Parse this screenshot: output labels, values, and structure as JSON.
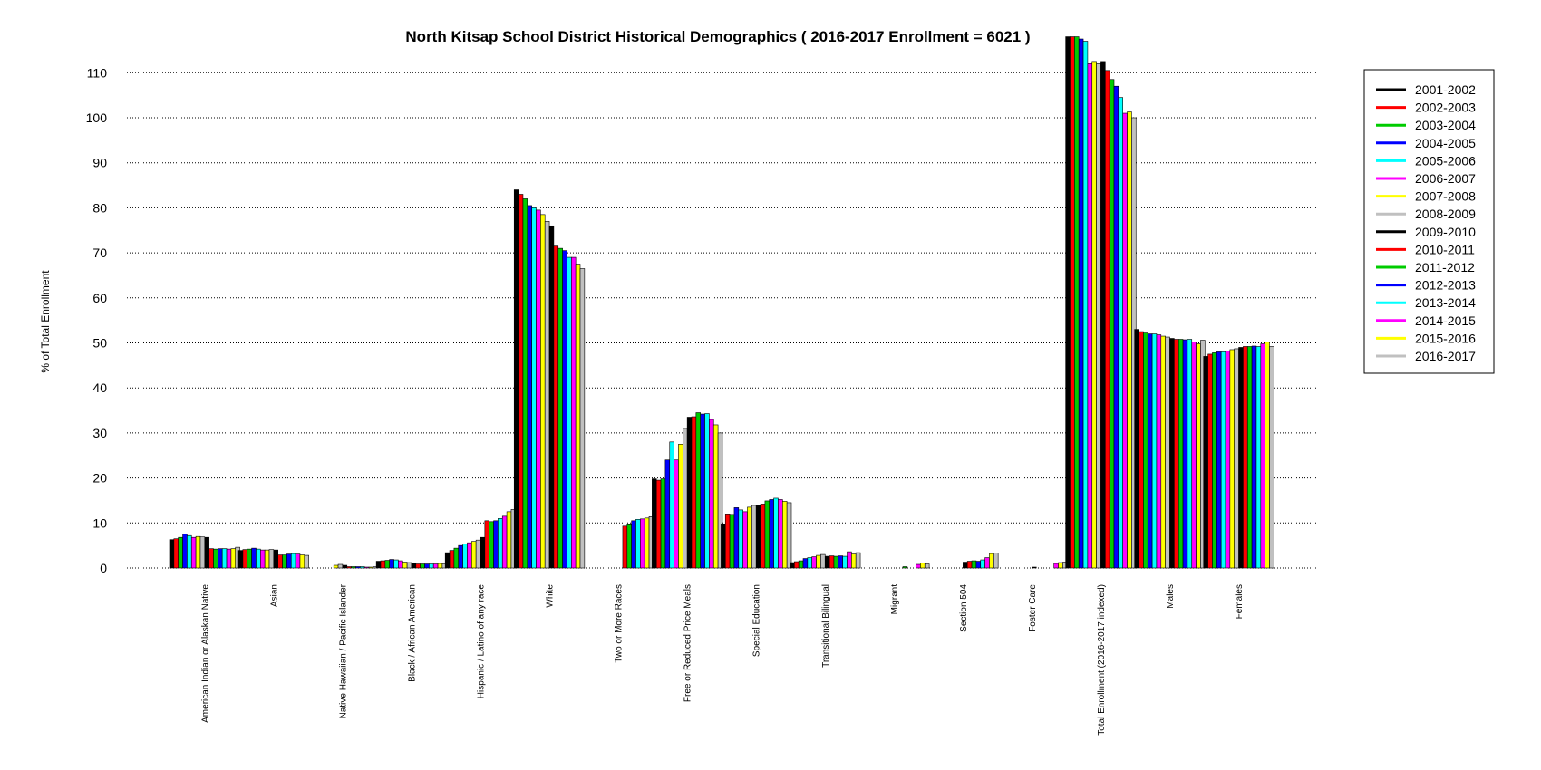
{
  "chart_data": {
    "type": "bar",
    "title": "North Kitsap School District Historical Demographics  ( 2016-2017 Enrollment =  6021 )",
    "xlabel": "",
    "ylabel": "% of Total Enrollment",
    "ylim": [
      0,
      118
    ],
    "yticks": [
      0,
      10,
      20,
      30,
      40,
      50,
      60,
      70,
      80,
      90,
      100,
      110
    ],
    "grid": "horizontal dotted at y ticks",
    "legend_position": "right",
    "categories": [
      "American Indian or Alaskan Native",
      "Asian",
      "Native Hawaiian / Pacific Islander",
      "Black / African American",
      "Hispanic / Latino of any race",
      "White",
      "Two or More Races",
      "Free or Reduced Price Meals",
      "Special Education",
      "Transitional Bilingual",
      "Migrant",
      "Section 504",
      "Foster Care",
      "Total Enrollment (2016-2017 indexed)",
      "Males",
      "Females"
    ],
    "series": [
      {
        "name": "2001-2002",
        "color": "#000000",
        "values": [
          6.3,
          3.9,
          0,
          1.5,
          3.4,
          84.0,
          0,
          19.8,
          9.8,
          1.2,
          0,
          0,
          0,
          118.0,
          53.0,
          47.0
        ]
      },
      {
        "name": "2002-2003",
        "color": "#ff0000",
        "values": [
          6.5,
          4.1,
          0,
          1.6,
          3.9,
          83.0,
          0,
          19.5,
          12.0,
          1.4,
          0,
          0,
          0,
          118.0,
          52.5,
          47.5
        ]
      },
      {
        "name": "2003-2004",
        "color": "#00cc00",
        "values": [
          6.8,
          4.2,
          0,
          1.7,
          4.4,
          82.0,
          0,
          19.8,
          11.9,
          1.6,
          0,
          0,
          0,
          118.0,
          52.2,
          47.8
        ]
      },
      {
        "name": "2004-2005",
        "color": "#0000ff",
        "values": [
          7.5,
          4.4,
          0,
          1.9,
          5.0,
          80.5,
          0,
          24.0,
          13.4,
          2.1,
          0,
          0,
          0,
          117.5,
          52.0,
          48.0
        ]
      },
      {
        "name": "2005-2006",
        "color": "#00ffff",
        "values": [
          7.2,
          4.2,
          0,
          1.8,
          5.3,
          80.0,
          0,
          28.0,
          12.9,
          2.3,
          0,
          0,
          0,
          117.0,
          52.0,
          48.0
        ]
      },
      {
        "name": "2006-2007",
        "color": "#ff00ff",
        "values": [
          6.8,
          4.0,
          0,
          1.6,
          5.6,
          79.5,
          0,
          24.0,
          12.5,
          2.5,
          0,
          0,
          0,
          112.0,
          51.8,
          48.2
        ]
      },
      {
        "name": "2007-2008",
        "color": "#ffff00",
        "values": [
          7.0,
          4.0,
          0.6,
          1.3,
          5.9,
          78.5,
          0,
          27.5,
          13.5,
          2.8,
          0,
          0,
          0,
          112.5,
          51.5,
          48.5
        ]
      },
      {
        "name": "2008-2009",
        "color": "#c0c0c0",
        "values": [
          6.9,
          4.1,
          0.8,
          1.2,
          6.2,
          77.0,
          0,
          31.0,
          13.9,
          3.0,
          0,
          0,
          0,
          112.0,
          51.3,
          48.7
        ]
      },
      {
        "name": "2009-2010",
        "color": "#000000",
        "values": [
          6.8,
          4.0,
          0.6,
          1.1,
          6.8,
          76.0,
          0,
          33.5,
          14.0,
          2.6,
          0,
          1.3,
          0.2,
          112.5,
          51.0,
          49.0
        ]
      },
      {
        "name": "2010-2011",
        "color": "#ff0000",
        "values": [
          4.3,
          2.9,
          0.3,
          0.9,
          10.5,
          71.5,
          9.3,
          33.6,
          14.2,
          2.7,
          0,
          1.5,
          0,
          110.5,
          50.8,
          49.2
        ]
      },
      {
        "name": "2011-2012",
        "color": "#00cc00",
        "values": [
          4.2,
          2.9,
          0.3,
          0.9,
          10.3,
          71.0,
          9.8,
          34.5,
          14.9,
          2.6,
          0.3,
          1.6,
          0,
          108.5,
          50.8,
          49.2
        ]
      },
      {
        "name": "2012-2013",
        "color": "#0000ff",
        "values": [
          4.3,
          3.1,
          0.3,
          0.9,
          10.5,
          70.5,
          10.5,
          34.2,
          15.2,
          2.7,
          0,
          1.5,
          0,
          107.0,
          50.7,
          49.3
        ]
      },
      {
        "name": "2013-2014",
        "color": "#00ffff",
        "values": [
          4.3,
          3.2,
          0.3,
          0.9,
          11.0,
          69.0,
          10.8,
          34.3,
          15.5,
          2.6,
          0,
          1.8,
          0,
          104.5,
          50.8,
          49.2
        ]
      },
      {
        "name": "2014-2015",
        "color": "#ff00ff",
        "values": [
          4.2,
          3.1,
          0.2,
          0.9,
          11.5,
          69.0,
          10.9,
          33.0,
          15.2,
          3.6,
          0.8,
          2.3,
          1.0,
          101.0,
          50.2,
          49.8
        ]
      },
      {
        "name": "2015-2016",
        "color": "#ffff00",
        "values": [
          4.3,
          2.9,
          0.2,
          1.0,
          12.5,
          67.5,
          11.1,
          31.8,
          14.8,
          3.1,
          1.1,
          3.2,
          1.2,
          101.3,
          49.8,
          50.2
        ]
      },
      {
        "name": "2016-2017",
        "color": "#c0c0c0",
        "values": [
          4.6,
          2.8,
          0.3,
          0.9,
          13.0,
          66.5,
          11.4,
          30.0,
          14.5,
          3.4,
          0.9,
          3.3,
          1.3,
          100.0,
          50.6,
          49.2
        ]
      }
    ]
  }
}
